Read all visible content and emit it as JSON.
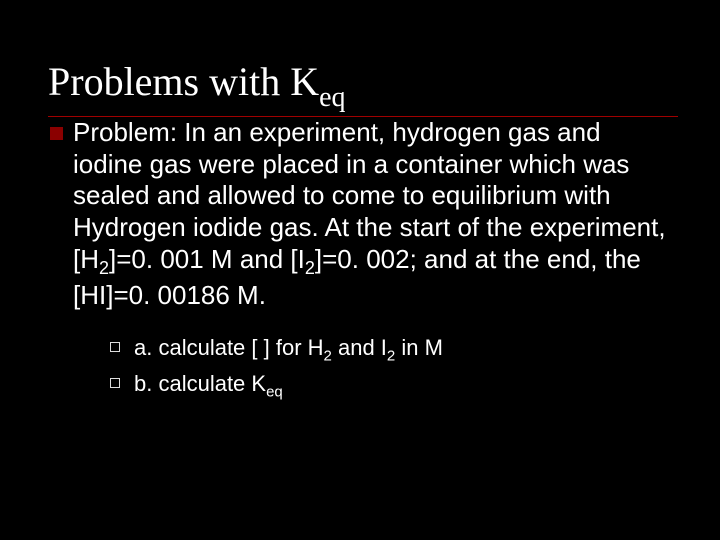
{
  "title_main": "Problems with K",
  "title_sub": "eq",
  "main_bullet": "Problem:  In an experiment, hydrogen gas and iodine gas were placed in a container which was sealed and allowed to come to equilibrium with Hydrogen iodide gas.  At the start of the experiment, [H<sub>2</sub>]=0. 001 M and [I<sub>2</sub>]=0. 002; and at the end, the [HI]=0. 00186 M.",
  "sub_a": "a. calculate [ ] for H<sub>2</sub> and I<sub>2</sub> in M",
  "sub_b": "b. calculate K<sub>eq</sub>",
  "colors": {
    "background": "#000000",
    "text": "#ffffff",
    "bullet_main": "#8b0000",
    "divider": "#a00000",
    "bullet_sub_border": "#dddddd"
  },
  "typography": {
    "title_font": "Times New Roman",
    "body_font": "Arial",
    "title_size_pt": 40,
    "main_size_pt": 26,
    "sub_size_pt": 22
  }
}
